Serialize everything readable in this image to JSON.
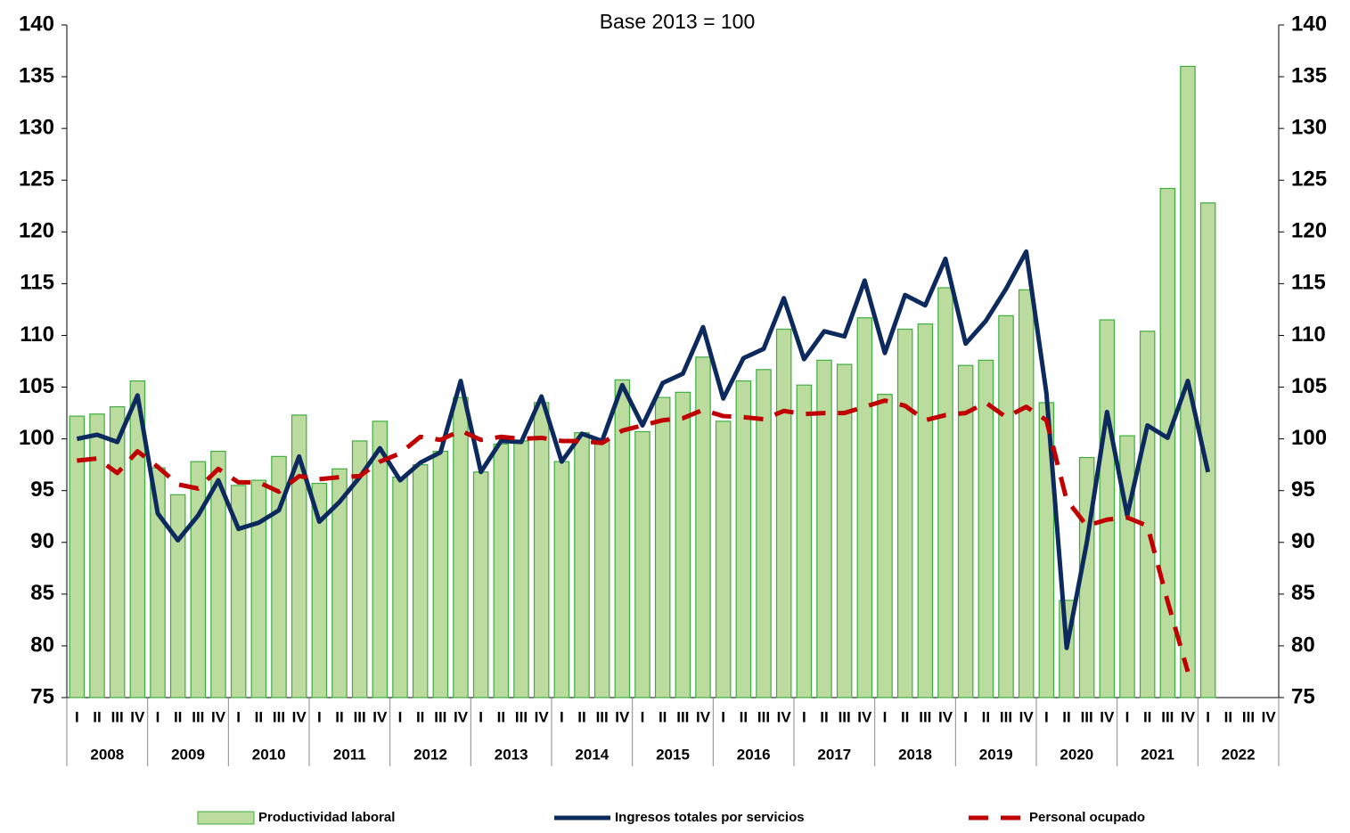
{
  "chart_data": {
    "type": "bar_line",
    "subtitle": "Base 2013 = 100",
    "categories": [
      "I",
      "II",
      "III",
      "IV",
      "I",
      "II",
      "III",
      "IV",
      "I",
      "II",
      "III",
      "IV",
      "I",
      "II",
      "III",
      "IV",
      "I",
      "II",
      "III",
      "IV",
      "I",
      "II",
      "III",
      "IV",
      "I",
      "II",
      "III",
      "IV",
      "I",
      "II",
      "III",
      "IV",
      "I",
      "II",
      "III",
      "IV",
      "I",
      "II",
      "III",
      "IV",
      "I",
      "II",
      "III",
      "IV",
      "I",
      "II",
      "III",
      "IV",
      "I",
      "II",
      "III",
      "IV",
      "I",
      "II",
      "III",
      "IV",
      "I",
      "II",
      "III",
      "IV"
    ],
    "years": [
      "2008",
      "2009",
      "2010",
      "2011",
      "2012",
      "2013",
      "2014",
      "2015",
      "2016",
      "2017",
      "2018",
      "2019",
      "2020",
      "2021",
      "2022"
    ],
    "ylim": [
      75,
      140
    ],
    "yticks": [
      75,
      80,
      85,
      90,
      95,
      100,
      105,
      110,
      115,
      120,
      125,
      130,
      135,
      140
    ],
    "series": [
      {
        "name": "Productividad laboral",
        "kind": "bar",
        "color": "#bcdb9f",
        "stroke": "#3fae3f",
        "values": [
          102.2,
          102.4,
          103.1,
          105.6,
          97.2,
          94.6,
          97.8,
          98.8,
          95.5,
          96.0,
          98.3,
          102.3,
          95.7,
          97.1,
          99.8,
          101.7,
          96.3,
          97.5,
          98.8,
          104.0,
          96.8,
          99.5,
          99.8,
          103.5,
          97.8,
          100.6,
          99.8,
          105.7,
          100.7,
          104.0,
          104.5,
          107.9,
          101.7,
          105.6,
          106.7,
          110.6,
          105.2,
          107.6,
          107.2,
          111.7,
          104.3,
          110.6,
          111.1,
          114.6,
          107.1,
          107.6,
          111.9,
          114.4,
          103.5,
          84.4,
          98.2,
          111.5,
          100.3,
          110.4,
          124.2,
          136.0,
          122.8,
          null,
          null,
          null
        ]
      },
      {
        "name": "Ingresos totales por servicios",
        "kind": "line",
        "color": "#0d2a5e",
        "values": [
          100.0,
          100.4,
          99.7,
          104.2,
          92.8,
          90.2,
          92.6,
          96.0,
          91.3,
          91.9,
          93.1,
          98.3,
          92.0,
          93.9,
          96.3,
          99.1,
          96.0,
          97.7,
          98.7,
          105.6,
          96.8,
          99.8,
          99.7,
          104.1,
          97.8,
          100.5,
          99.8,
          105.2,
          101.3,
          105.4,
          106.3,
          110.8,
          103.9,
          107.8,
          108.7,
          113.6,
          107.7,
          110.4,
          109.9,
          115.3,
          108.3,
          113.9,
          112.9,
          117.4,
          109.2,
          111.4,
          114.5,
          118.1,
          104.4,
          79.8,
          90.0,
          102.6,
          92.6,
          101.3,
          100.1,
          105.6,
          96.8,
          null,
          null,
          null
        ]
      },
      {
        "name": "Personal ocupado",
        "kind": "dashed",
        "color": "#c00000",
        "values": [
          97.9,
          98.1,
          96.7,
          98.8,
          97.3,
          95.6,
          95.2,
          97.1,
          95.8,
          95.8,
          94.9,
          96.4,
          96.1,
          96.3,
          96.4,
          97.8,
          98.6,
          100.2,
          99.9,
          100.8,
          99.9,
          100.2,
          100.0,
          100.1,
          99.8,
          99.8,
          99.6,
          100.8,
          101.3,
          101.8,
          102.0,
          102.8,
          102.2,
          102.1,
          101.9,
          102.7,
          102.4,
          102.5,
          102.5,
          103.1,
          103.7,
          103.2,
          101.8,
          102.3,
          102.5,
          103.5,
          102.1,
          103.1,
          101.8,
          94.1,
          91.6,
          92.2,
          92.4,
          91.6,
          84.3,
          77.5,
          null,
          null,
          null,
          null
        ]
      }
    ]
  }
}
